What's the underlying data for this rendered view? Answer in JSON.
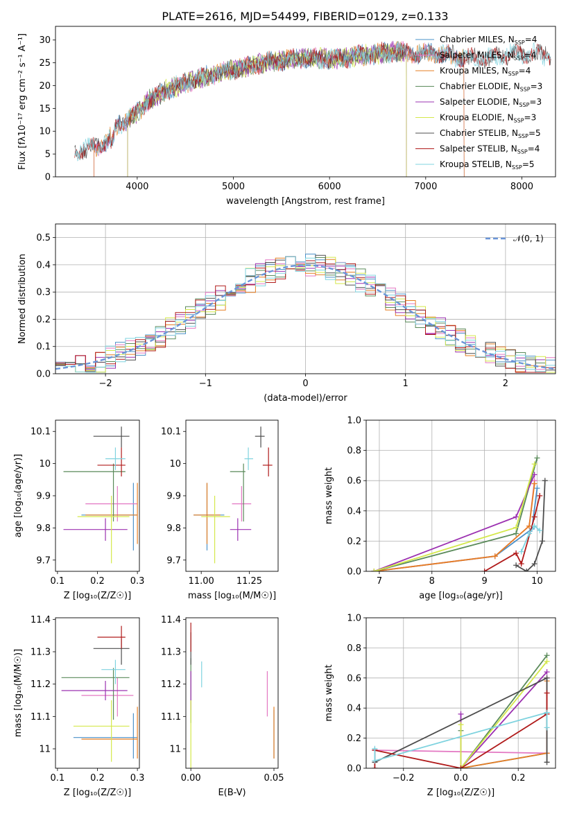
{
  "figure_title": "PLATE=2616, MJD=54499, FIBERID=0129, z=0.133",
  "colors": {
    "Chabrier MILES": "#4a90c8",
    "Salpeter MILES": "#e377c2",
    "Kroupa MILES": "#e67e22",
    "Chabrier ELODIE": "#5a8a5a",
    "Salpeter ELODIE": "#9b30b0",
    "Kroupa ELODIE": "#d4e84a",
    "Chabrier STELIB": "#4d4d4d",
    "Salpeter STELIB": "#b01a1a",
    "Kroupa STELIB": "#7fd3df",
    "normal": "#6a95d8"
  },
  "chart_data": [
    {
      "id": "spectrum",
      "type": "line",
      "title": "PLATE=2616, MJD=54499, FIBERID=0129, z=0.133",
      "xlabel": "wavelength [Angstrom, rest frame]",
      "ylabel": "Flux [fλ10⁻¹⁷ erg cm⁻² s⁻¹ A⁻¹]",
      "xlim": [
        3150,
        8350
      ],
      "ylim": [
        0,
        33
      ],
      "xticks": [
        4000,
        5000,
        6000,
        7000,
        8000
      ],
      "yticks": [
        0,
        5,
        10,
        15,
        20,
        25,
        30
      ],
      "grid": false,
      "legend_position": "top-right",
      "series": [
        {
          "name": "Chabrier MILES, N_SSP=4",
          "range": [
            3550,
            7400
          ]
        },
        {
          "name": "Salpeter MILES, N_SSP=4",
          "range": [
            3550,
            7400
          ]
        },
        {
          "name": "Kroupa MILES, N_SSP=4",
          "range": [
            3550,
            7400
          ]
        },
        {
          "name": "Chabrier ELODIE, N_SSP=3",
          "range": [
            3900,
            6800
          ]
        },
        {
          "name": "Salpeter ELODIE, N_SSP=3",
          "range": [
            3900,
            6800
          ]
        },
        {
          "name": "Kroupa ELODIE, N_SSP=3",
          "range": [
            3900,
            6800
          ]
        },
        {
          "name": "Chabrier STELIB, N_SSP=5",
          "range": [
            3350,
            8300
          ]
        },
        {
          "name": "Salpeter STELIB, N_SSP=4",
          "range": [
            3350,
            8300
          ]
        },
        {
          "name": "Kroupa STELIB, N_SSP=5",
          "range": [
            3350,
            8300
          ]
        }
      ],
      "continuum": {
        "x": [
          3350,
          3500,
          3600,
          3700,
          3800,
          3900,
          4000,
          4100,
          4300,
          4500,
          4700,
          4900,
          5100,
          5300,
          5500,
          5700,
          5900,
          6100,
          6300,
          6500,
          6700,
          6900,
          7100,
          7300,
          7500,
          7700,
          7900,
          8100,
          8300
        ],
        "y": [
          5.5,
          6.3,
          6.8,
          8.0,
          11.5,
          12.5,
          14.0,
          16.5,
          19.0,
          20.5,
          22.0,
          23.0,
          24.0,
          25.0,
          25.5,
          26.0,
          26.0,
          26.0,
          26.5,
          27.0,
          27.5,
          27.0,
          27.0,
          26.5,
          26.0,
          26.0,
          27.0,
          27.0,
          26.5
        ]
      }
    },
    {
      "id": "residuals",
      "type": "step",
      "xlabel": "(data-model)/error",
      "ylabel": "Normed distribution",
      "xlim": [
        -2.5,
        2.5
      ],
      "ylim": [
        0,
        0.55
      ],
      "xticks": [
        -2,
        -1,
        0,
        1,
        2
      ],
      "xtick_labels": [
        "−2",
        "−1",
        "0",
        "1",
        "2"
      ],
      "yticks": [
        0.0,
        0.1,
        0.2,
        0.3,
        0.4,
        0.5
      ],
      "grid": true,
      "legend": [
        {
          "name": "𝒩(0, 1)",
          "style": "dashed"
        }
      ],
      "legend_position": "top-right",
      "bin_width": 0.1,
      "base_shape": [
        0.04,
        0.025,
        0.028,
        0.031,
        0.035,
        0.04,
        0.046,
        0.053,
        0.061,
        0.07,
        0.08,
        0.091,
        0.103,
        0.116,
        0.13,
        0.145,
        0.16,
        0.176,
        0.194,
        0.211,
        0.229,
        0.248,
        0.267,
        0.286,
        0.305,
        0.324,
        0.342,
        0.358,
        0.374,
        0.388,
        0.4,
        0.41,
        0.418,
        0.423,
        0.426,
        0.426,
        0.423,
        0.418,
        0.41,
        0.4,
        0.388,
        0.374,
        0.358,
        0.342,
        0.324,
        0.305,
        0.286,
        0.267,
        0.248,
        0.229,
        0.211
      ]
    },
    {
      "id": "age_vs_z",
      "type": "errorbar",
      "xlabel": "Z [log₁₀(Z/Z☉)]",
      "ylabel": "age  [log₁₀(age/yr)]",
      "xlim": [
        0.095,
        0.305
      ],
      "ylim": [
        9.665,
        10.135
      ],
      "xticks": [
        0.1,
        0.2,
        0.3
      ],
      "yticks": [
        9.7,
        9.8,
        9.9,
        10.0,
        10.1
      ],
      "points": [
        {
          "model": "Chabrier MILES",
          "x": 0.29,
          "y": 9.84,
          "xerr": [
            0.16,
            0.3
          ],
          "yerr": [
            9.73,
            9.94
          ]
        },
        {
          "model": "Salpeter MILES",
          "x": 0.25,
          "y": 9.875,
          "xerr": [
            0.17,
            0.3
          ],
          "yerr": [
            9.82,
            9.93
          ]
        },
        {
          "model": "Kroupa MILES",
          "x": 0.3,
          "y": 9.84,
          "xerr": [
            0.17,
            0.3
          ],
          "yerr": [
            9.75,
            9.94
          ]
        },
        {
          "model": "Chabrier ELODIE",
          "x": 0.24,
          "y": 9.975,
          "xerr": [
            0.115,
            0.27
          ],
          "yerr": [
            9.82,
            10.0
          ]
        },
        {
          "model": "Salpeter ELODIE",
          "x": 0.22,
          "y": 9.795,
          "xerr": [
            0.115,
            0.275
          ],
          "yerr": [
            9.76,
            9.83
          ]
        },
        {
          "model": "Kroupa ELODIE",
          "x": 0.235,
          "y": 9.835,
          "xerr": [
            0.15,
            0.28
          ],
          "yerr": [
            9.69,
            9.9
          ]
        },
        {
          "model": "Chabrier STELIB",
          "x": 0.26,
          "y": 10.085,
          "xerr": [
            0.19,
            0.28
          ],
          "yerr": [
            10.05,
            10.115
          ]
        },
        {
          "model": "Salpeter STELIB",
          "x": 0.26,
          "y": 9.995,
          "xerr": [
            0.2,
            0.27
          ],
          "yerr": [
            9.96,
            10.05
          ]
        },
        {
          "model": "Kroupa STELIB",
          "x": 0.245,
          "y": 10.015,
          "xerr": [
            0.22,
            0.27
          ],
          "yerr": [
            9.98,
            10.05
          ]
        }
      ]
    },
    {
      "id": "age_vs_mass",
      "type": "errorbar",
      "xlabel": "mass [log₁₀(M/M☉)]",
      "xlim": [
        10.92,
        11.4
      ],
      "ylim": [
        9.665,
        10.135
      ],
      "xticks": [
        11.0,
        11.25
      ],
      "xtick_labels": [
        "11.00",
        "11.25"
      ],
      "yticks": [
        9.7,
        9.8,
        9.9,
        10.0,
        10.1
      ],
      "points": [
        {
          "model": "Chabrier MILES",
          "x": 11.03,
          "y": 9.84,
          "xerr": [
            10.96,
            11.12
          ],
          "yerr": [
            9.73,
            9.94
          ]
        },
        {
          "model": "Salpeter MILES",
          "x": 11.21,
          "y": 9.875,
          "xerr": [
            11.16,
            11.26
          ],
          "yerr": [
            9.82,
            9.93
          ]
        },
        {
          "model": "Kroupa MILES",
          "x": 11.03,
          "y": 9.84,
          "xerr": [
            10.96,
            11.1
          ],
          "yerr": [
            9.75,
            9.94
          ]
        },
        {
          "model": "Chabrier ELODIE",
          "x": 11.22,
          "y": 9.975,
          "xerr": [
            11.15,
            11.23
          ],
          "yerr": [
            9.82,
            10.0
          ]
        },
        {
          "model": "Salpeter ELODIE",
          "x": 11.19,
          "y": 9.795,
          "xerr": [
            11.15,
            11.26
          ],
          "yerr": [
            9.76,
            9.83
          ]
        },
        {
          "model": "Kroupa ELODIE",
          "x": 11.07,
          "y": 9.835,
          "xerr": [
            11.0,
            11.15
          ],
          "yerr": [
            9.69,
            9.9
          ]
        },
        {
          "model": "Chabrier STELIB",
          "x": 11.31,
          "y": 10.085,
          "xerr": [
            11.28,
            11.33
          ],
          "yerr": [
            10.05,
            10.115
          ]
        },
        {
          "model": "Salpeter STELIB",
          "x": 11.35,
          "y": 9.995,
          "xerr": [
            11.32,
            11.37
          ],
          "yerr": [
            9.96,
            10.05
          ]
        },
        {
          "model": "Kroupa STELIB",
          "x": 11.245,
          "y": 10.015,
          "xerr": [
            11.225,
            11.27
          ],
          "yerr": [
            9.98,
            10.05
          ]
        }
      ]
    },
    {
      "id": "mass_weight_vs_age",
      "type": "line",
      "xlabel": "age  [log₁₀(age/yr)]",
      "ylabel": "mass weight",
      "xlim": [
        6.75,
        10.35
      ],
      "ylim": [
        0,
        1
      ],
      "xticks": [
        7,
        8,
        9,
        10
      ],
      "yticks": [
        0.0,
        0.2,
        0.4,
        0.6,
        0.8,
        1.0
      ],
      "grid": true,
      "series": [
        {
          "model": "Chabrier MILES",
          "x": [
            6.9,
            9.2,
            9.9,
            10.0
          ],
          "y": [
            0.0,
            0.1,
            0.28,
            0.55
          ]
        },
        {
          "model": "Salpeter MILES",
          "x": [
            6.9,
            9.2,
            9.85,
            9.95
          ],
          "y": [
            0.0,
            0.1,
            0.3,
            0.6
          ]
        },
        {
          "model": "Kroupa MILES",
          "x": [
            6.9,
            9.2,
            9.85,
            9.95
          ],
          "y": [
            0.0,
            0.1,
            0.3,
            0.58
          ]
        },
        {
          "model": "Chabrier ELODIE",
          "x": [
            6.9,
            9.6,
            10.0
          ],
          "y": [
            0.0,
            0.25,
            0.75
          ]
        },
        {
          "model": "Salpeter ELODIE",
          "x": [
            6.9,
            9.6,
            9.95
          ],
          "y": [
            0.0,
            0.36,
            0.64
          ]
        },
        {
          "model": "Kroupa ELODIE",
          "x": [
            6.9,
            9.6,
            9.95
          ],
          "y": [
            0.0,
            0.29,
            0.71
          ]
        },
        {
          "model": "Chabrier STELIB",
          "x": [
            9.6,
            9.8,
            9.95,
            10.1,
            10.15
          ],
          "y": [
            0.04,
            0.0,
            0.05,
            0.2,
            0.6
          ]
        },
        {
          "model": "Salpeter STELIB",
          "x": [
            9.0,
            9.6,
            9.7,
            9.95,
            10.05
          ],
          "y": [
            0.0,
            0.12,
            0.05,
            0.36,
            0.5
          ]
        },
        {
          "model": "Kroupa STELIB",
          "x": [
            9.7,
            9.85,
            9.95,
            10.05
          ],
          "y": [
            0.13,
            0.25,
            0.3,
            0.27
          ]
        }
      ]
    },
    {
      "id": "mass_vs_z",
      "type": "errorbar",
      "xlabel": "Z [log₁₀(Z/Z☉)]",
      "ylabel": "mass [log₁₀(M/M☉)]",
      "xlim": [
        0.095,
        0.305
      ],
      "ylim": [
        10.94,
        11.405
      ],
      "xticks": [
        0.1,
        0.2,
        0.3
      ],
      "yticks": [
        11.0,
        11.1,
        11.2,
        11.3,
        11.4
      ],
      "points": [
        {
          "model": "Chabrier MILES",
          "x": 0.29,
          "y": 11.035,
          "xerr": [
            0.14,
            0.3
          ],
          "yerr": [
            10.97,
            11.11
          ]
        },
        {
          "model": "Salpeter MILES",
          "x": 0.25,
          "y": 11.165,
          "xerr": [
            0.16,
            0.29
          ],
          "yerr": [
            11.1,
            11.22
          ]
        },
        {
          "model": "Kroupa MILES",
          "x": 0.3,
          "y": 11.03,
          "xerr": [
            0.16,
            0.3
          ],
          "yerr": [
            10.97,
            11.13
          ]
        },
        {
          "model": "Chabrier ELODIE",
          "x": 0.24,
          "y": 11.22,
          "xerr": [
            0.11,
            0.28
          ],
          "yerr": [
            11.09,
            11.25
          ]
        },
        {
          "model": "Salpeter ELODIE",
          "x": 0.22,
          "y": 11.18,
          "xerr": [
            0.11,
            0.275
          ],
          "yerr": [
            11.15,
            11.21
          ]
        },
        {
          "model": "Kroupa ELODIE",
          "x": 0.235,
          "y": 11.07,
          "xerr": [
            0.14,
            0.28
          ],
          "yerr": [
            10.96,
            11.15
          ]
        },
        {
          "model": "Chabrier STELIB",
          "x": 0.26,
          "y": 11.31,
          "xerr": [
            0.19,
            0.28
          ],
          "yerr": [
            11.26,
            11.34
          ]
        },
        {
          "model": "Salpeter STELIB",
          "x": 0.26,
          "y": 11.345,
          "xerr": [
            0.2,
            0.27
          ],
          "yerr": [
            11.31,
            11.38
          ]
        },
        {
          "model": "Kroupa STELIB",
          "x": 0.245,
          "y": 11.245,
          "xerr": [
            0.21,
            0.27
          ],
          "yerr": [
            11.2,
            11.275
          ]
        }
      ]
    },
    {
      "id": "mass_vs_ebv",
      "type": "errorbar",
      "xlabel": "E(B-V)",
      "xlim": [
        -0.003,
        0.0525
      ],
      "ylim": [
        10.94,
        11.405
      ],
      "xticks": [
        0.0,
        0.05
      ],
      "xtick_labels": [
        "0.00",
        "0.05"
      ],
      "yticks": [
        11.0,
        11.1,
        11.2,
        11.3,
        11.4
      ],
      "points": [
        {
          "model": "Chabrier MILES",
          "x": 0.05,
          "y": 11.035,
          "yerr": [
            10.97,
            11.12
          ]
        },
        {
          "model": "Salpeter MILES",
          "x": 0.046,
          "y": 11.165,
          "yerr": [
            11.1,
            11.24
          ]
        },
        {
          "model": "Kroupa MILES",
          "x": 0.05,
          "y": 11.03,
          "yerr": [
            10.97,
            11.13
          ]
        },
        {
          "model": "Chabrier ELODIE",
          "x": 0.0,
          "y": 11.22,
          "yerr": [
            11.08,
            11.28
          ]
        },
        {
          "model": "Salpeter ELODIE",
          "x": 0.0,
          "y": 11.18,
          "yerr": [
            11.12,
            11.24
          ]
        },
        {
          "model": "Kroupa ELODIE",
          "x": 0.0,
          "y": 11.07,
          "yerr": [
            10.94,
            11.15
          ]
        },
        {
          "model": "Chabrier STELIB",
          "x": 0.0,
          "y": 11.31,
          "yerr": [
            11.26,
            11.36
          ]
        },
        {
          "model": "Salpeter STELIB",
          "x": 0.0,
          "y": 11.345,
          "yerr": [
            11.3,
            11.39
          ]
        },
        {
          "model": "Kroupa STELIB",
          "x": 0.0065,
          "y": 11.23,
          "yerr": [
            11.19,
            11.27
          ]
        }
      ]
    },
    {
      "id": "mass_weight_vs_z",
      "type": "line",
      "xlabel": "Z [log₁₀(Z/Z☉)]",
      "ylabel": "mass weight",
      "xlim": [
        -0.33,
        0.33
      ],
      "ylim": [
        0,
        1
      ],
      "xticks": [
        -0.2,
        0.0,
        0.2
      ],
      "xtick_labels": [
        "−0.2",
        "0.0",
        "0.2"
      ],
      "yticks": [
        0.0,
        0.2,
        0.4,
        0.6,
        0.8,
        1.0
      ],
      "grid": true,
      "series": [
        {
          "model": "Chabrier MILES",
          "x": [
            0.0,
            0.3,
            0.3
          ],
          "y": [
            0.0,
            0.1,
            0.37
          ]
        },
        {
          "model": "Salpeter MILES",
          "x": [
            -0.3,
            0.3,
            0.3
          ],
          "y": [
            0.12,
            0.1,
            0.6
          ]
        },
        {
          "model": "Kroupa MILES",
          "x": [
            0.0,
            0.3,
            0.3
          ],
          "y": [
            0.0,
            0.1,
            0.58
          ]
        },
        {
          "model": "Chabrier ELODIE",
          "x": [
            0.0,
            0.0,
            0.3
          ],
          "y": [
            0.25,
            0.0,
            0.75
          ]
        },
        {
          "model": "Salpeter ELODIE",
          "x": [
            0.0,
            0.0,
            0.3
          ],
          "y": [
            0.36,
            0.0,
            0.64
          ]
        },
        {
          "model": "Kroupa ELODIE",
          "x": [
            0.0,
            0.0,
            0.3
          ],
          "y": [
            0.29,
            0.0,
            0.71
          ]
        },
        {
          "model": "Chabrier STELIB",
          "x": [
            -0.3,
            0.3,
            0.3
          ],
          "y": [
            0.04,
            0.6,
            0.04
          ]
        },
        {
          "model": "Salpeter STELIB",
          "x": [
            -0.3,
            -0.3,
            0.0,
            0.3,
            0.3
          ],
          "y": [
            0.0,
            0.12,
            0.0,
            0.36,
            0.5
          ]
        },
        {
          "model": "Kroupa STELIB",
          "x": [
            -0.3,
            -0.3,
            0.3,
            0.3
          ],
          "y": [
            0.13,
            0.05,
            0.37,
            0.27
          ]
        }
      ]
    }
  ]
}
